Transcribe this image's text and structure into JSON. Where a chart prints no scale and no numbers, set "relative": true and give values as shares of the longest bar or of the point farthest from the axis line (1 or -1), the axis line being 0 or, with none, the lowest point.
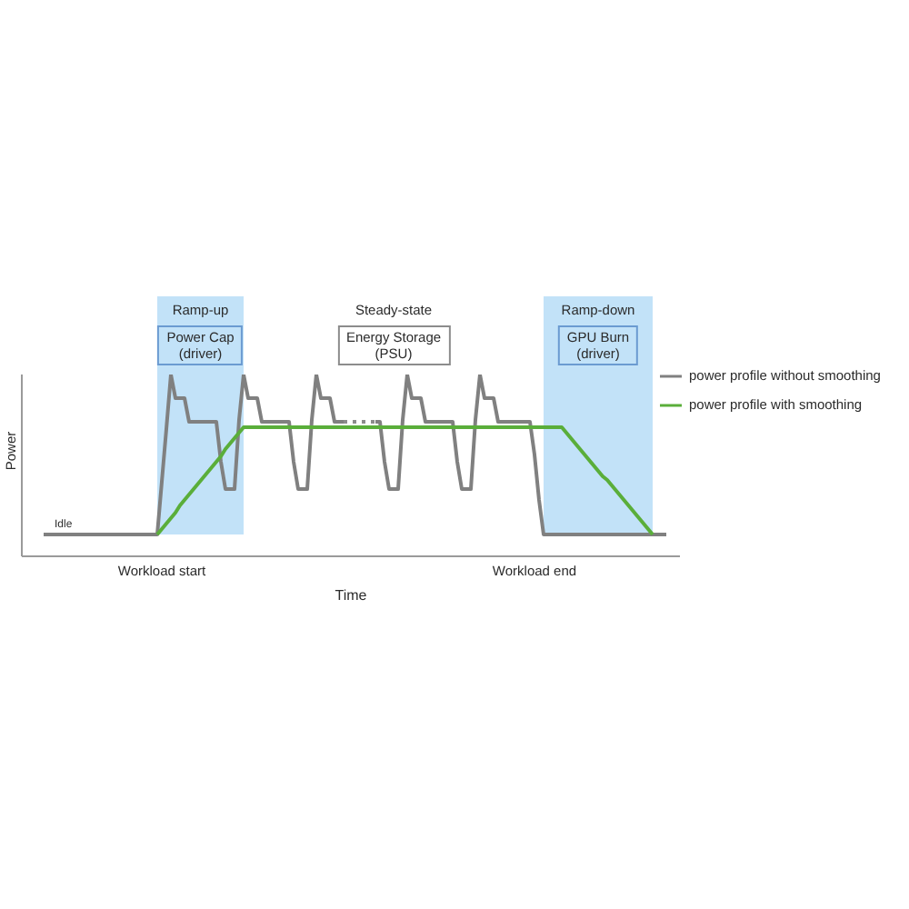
{
  "chart_data": {
    "type": "line",
    "relative": true,
    "xlabel": "Time",
    "ylabel": "Power",
    "categories": [
      null,
      null,
      null,
      null,
      null,
      null,
      null,
      null,
      null,
      null,
      null,
      null,
      null,
      null,
      null,
      null,
      null,
      null,
      null,
      null,
      null,
      null,
      null,
      null,
      null,
      null,
      "Workload start",
      null,
      null,
      null,
      null,
      null,
      null,
      null,
      null,
      null,
      null,
      null,
      null,
      null,
      null,
      null,
      null,
      null,
      null,
      null,
      null,
      null,
      null,
      null,
      null,
      null,
      null,
      null,
      null,
      null,
      null,
      null,
      null,
      null,
      null,
      null,
      null,
      null,
      null,
      null,
      null,
      null,
      null,
      null,
      null,
      null,
      null,
      null,
      null,
      null,
      null,
      null,
      null,
      null,
      null,
      null,
      null,
      null,
      null,
      null,
      null,
      null,
      null,
      null,
      null,
      null,
      null,
      null,
      null,
      null,
      null,
      null,
      null,
      null,
      null,
      null,
      null,
      null,
      null,
      null,
      null,
      null,
      "Workload end",
      null,
      null,
      null,
      null,
      null,
      null,
      null,
      null,
      null,
      null,
      null,
      null,
      null,
      null,
      null,
      null,
      null,
      null,
      null,
      null,
      null,
      null,
      null,
      null,
      null,
      null,
      null,
      null,
      null
    ],
    "series": [
      {
        "name": "power profile without smoothing",
        "color": "#808080",
        "values": [
          0.12,
          0.12,
          0.12,
          0.12,
          0.12,
          0.12,
          0.12,
          0.12,
          0.12,
          0.12,
          0.12,
          0.12,
          0.12,
          0.12,
          0.12,
          0.12,
          0.12,
          0.12,
          0.12,
          0.12,
          0.12,
          0.12,
          0.12,
          0.12,
          0.12,
          0.12,
          0.41,
          0.7,
          1,
          0.87,
          0.87,
          0.87,
          0.74,
          0.74,
          0.74,
          0.74,
          0.74,
          0.74,
          0.74,
          0.52,
          0.37,
          0.37,
          0.37,
          0.75,
          1,
          0.87,
          0.87,
          0.87,
          0.74,
          0.74,
          0.74,
          0.74,
          0.74,
          0.74,
          0.74,
          0.52,
          0.37,
          0.37,
          0.37,
          0.75,
          1,
          0.87,
          0.87,
          0.87,
          0.74,
          0.74,
          0.74,
          null,
          null,
          null,
          null,
          null,
          null,
          0.74,
          0.74,
          0.52,
          0.37,
          0.37,
          0.37,
          0.75,
          1,
          0.87,
          0.87,
          0.87,
          0.74,
          0.74,
          0.74,
          0.74,
          0.74,
          0.74,
          0.74,
          0.52,
          0.37,
          0.37,
          0.37,
          0.75,
          1,
          0.87,
          0.87,
          0.87,
          0.74,
          0.74,
          0.74,
          0.74,
          0.74,
          0.74,
          0.74,
          0.74,
          0.56,
          0.31,
          0.12,
          0.12,
          0.12,
          0.12,
          0.12,
          0.12,
          0.12,
          0.12,
          0.12,
          0.12,
          0.12,
          0.12,
          0.12,
          0.12,
          0.12,
          0.12,
          0.12,
          0.12,
          0.12,
          0.12,
          0.12,
          0.12,
          0.12,
          0.12,
          0.12,
          0.12,
          0.12,
          0.12
        ]
      },
      {
        "color": "#8c8c8c",
        "line_style": "dotted",
        "values": [
          null,
          null,
          null,
          null,
          null,
          null,
          null,
          null,
          null,
          null,
          null,
          null,
          null,
          null,
          null,
          null,
          null,
          null,
          null,
          null,
          null,
          null,
          null,
          null,
          null,
          null,
          null,
          null,
          null,
          null,
          null,
          null,
          null,
          null,
          null,
          null,
          null,
          null,
          null,
          null,
          null,
          null,
          null,
          null,
          null,
          null,
          null,
          null,
          null,
          null,
          null,
          null,
          null,
          null,
          null,
          null,
          null,
          null,
          null,
          null,
          null,
          null,
          null,
          null,
          null,
          null,
          0.74,
          0.74,
          0.74,
          0.74,
          0.74,
          0.74,
          0.74,
          0.74,
          null,
          null,
          null,
          null,
          null,
          null,
          null,
          null,
          null,
          null,
          null,
          null,
          null,
          null,
          null,
          null,
          null,
          null,
          null,
          null,
          null,
          null,
          null,
          null,
          null,
          null,
          null,
          null,
          null,
          null,
          null,
          null,
          null,
          null,
          null,
          null,
          null,
          null,
          null,
          null,
          null,
          null,
          null,
          null,
          null,
          null,
          null,
          null,
          null,
          null,
          null,
          null,
          null,
          null,
          null,
          null,
          null,
          null,
          null,
          null,
          null,
          null,
          null,
          null
        ]
      },
      {
        "name": "power profile with smoothing",
        "color": "#5aae3a",
        "values": [
          null,
          null,
          null,
          null,
          null,
          null,
          null,
          null,
          null,
          null,
          null,
          null,
          null,
          null,
          null,
          null,
          null,
          null,
          null,
          null,
          null,
          null,
          null,
          null,
          null,
          0.12,
          0.15,
          0.18,
          0.21,
          0.24,
          0.28,
          0.31,
          0.34,
          0.37,
          0.4,
          0.43,
          0.46,
          0.49,
          0.52,
          0.55,
          0.59,
          0.62,
          0.65,
          0.68,
          0.71,
          0.71,
          0.71,
          0.71,
          0.71,
          0.71,
          0.71,
          0.71,
          0.71,
          0.71,
          0.71,
          0.71,
          0.71,
          0.71,
          0.71,
          0.71,
          0.71,
          0.71,
          0.71,
          0.71,
          0.71,
          0.71,
          0.71,
          0.71,
          0.71,
          0.71,
          0.71,
          0.71,
          0.71,
          0.71,
          0.71,
          0.71,
          0.71,
          0.71,
          0.71,
          0.71,
          0.71,
          0.71,
          0.71,
          0.71,
          0.71,
          0.71,
          0.71,
          0.71,
          0.71,
          0.71,
          0.71,
          0.71,
          0.71,
          0.71,
          0.71,
          0.71,
          0.71,
          0.71,
          0.71,
          0.71,
          0.71,
          0.71,
          0.71,
          0.71,
          0.71,
          0.71,
          0.71,
          0.71,
          0.71,
          0.71,
          0.71,
          0.71,
          0.71,
          0.71,
          0.71,
          0.68,
          0.65,
          0.62,
          0.59,
          0.56,
          0.53,
          0.5,
          0.47,
          0.44,
          0.42,
          0.39,
          0.36,
          0.33,
          0.3,
          0.27,
          0.24,
          0.21,
          0.18,
          0.15,
          0.12,
          null,
          null,
          null
        ]
      }
    ],
    "annotations": [
      "Ramp-up",
      "Steady-state",
      "Ramp-down",
      "Power Cap (driver)",
      "Energy Storage (PSU)",
      "GPU Burn (driver)",
      {
        "text": "Idle",
        "y": 0.12
      }
    ],
    "legend": "top right"
  }
}
